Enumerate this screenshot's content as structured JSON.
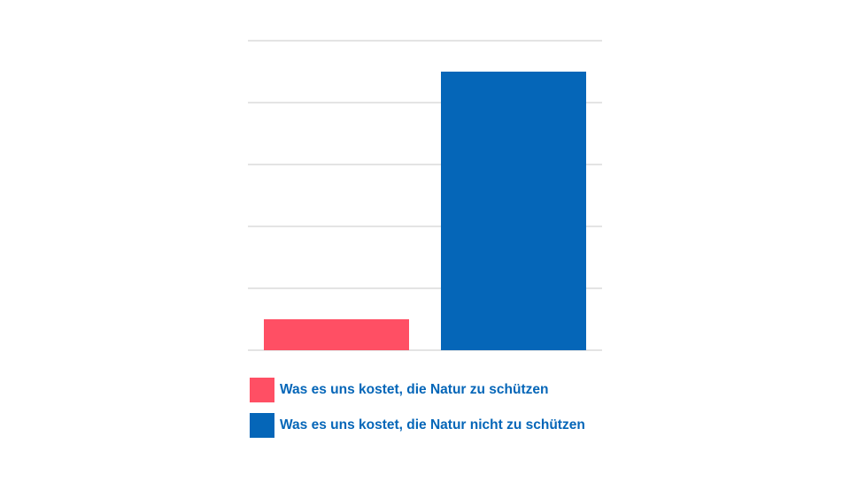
{
  "chart_data": {
    "type": "bar",
    "title": "",
    "xlabel": "",
    "ylabel": "",
    "grid": true,
    "legend_position": "bottom",
    "ylim": [
      0,
      5
    ],
    "gridlines": [
      0,
      1,
      2,
      3,
      4,
      5
    ],
    "series": [
      {
        "name": "Was es uns kostet, die Natur zu schützen",
        "value": 0.5,
        "color": "#ff4f64"
      },
      {
        "name": "Was es uns kostet, die Natur nicht zu schützen",
        "value": 4.5,
        "color": "#0566b8"
      }
    ]
  },
  "colors": {
    "grid": "#c8c8c8",
    "legend_text": "#0566b8"
  }
}
